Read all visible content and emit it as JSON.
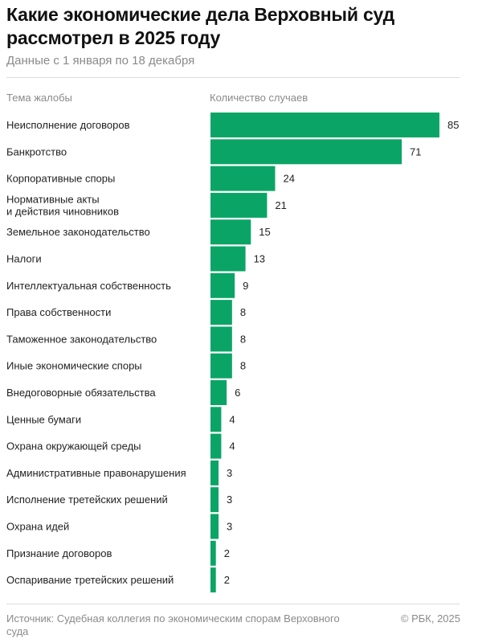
{
  "header": {
    "title": "Какие экономические дела Верховный суд рассмотрел в 2025 году",
    "subtitle": "Данные с 1 января по 18 декабря"
  },
  "columns": {
    "left": "Тема жалобы",
    "right": "Количество случаев"
  },
  "footer": {
    "source": "Источник: Судебная коллегия по экономическим спорам Верховного суда",
    "copyright": "© РБК, 2025"
  },
  "chart_data": {
    "type": "bar",
    "orientation": "horizontal",
    "bar_color": "#0aa566",
    "categories": [
      [
        "Неисполнение договоров"
      ],
      [
        "Банкротство"
      ],
      [
        "Корпоративные споры"
      ],
      [
        "Нормативные акты",
        "и действия чиновников"
      ],
      [
        "Земельное законодательство"
      ],
      [
        "Налоги"
      ],
      [
        "Интеллектуальная собственность"
      ],
      [
        "Права собственности"
      ],
      [
        "Таможенное законодательство"
      ],
      [
        "Иные экономические споры"
      ],
      [
        "Внедоговорные обязательства"
      ],
      [
        "Ценные бумаги"
      ],
      [
        "Охрана окружающей среды"
      ],
      [
        "Административные правонарушения"
      ],
      [
        "Исполнение третейских решений"
      ],
      [
        "Охрана идей"
      ],
      [
        "Признание договоров"
      ],
      [
        "Оспаривание третейских решений"
      ]
    ],
    "values": [
      85,
      71,
      24,
      21,
      15,
      13,
      9,
      8,
      8,
      8,
      6,
      4,
      4,
      3,
      3,
      3,
      2,
      2
    ],
    "xlim": [
      0,
      85
    ],
    "grid": false,
    "legend": "none"
  }
}
